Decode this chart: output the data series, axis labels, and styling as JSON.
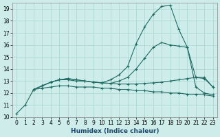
{
  "xlabel": "Humidex (Indice chaleur)",
  "ylabel": "",
  "xlim": [
    -0.5,
    23.5
  ],
  "ylim": [
    10,
    19.5
  ],
  "yticks": [
    10,
    11,
    12,
    13,
    14,
    15,
    16,
    17,
    18,
    19
  ],
  "xticks": [
    0,
    1,
    2,
    3,
    4,
    5,
    6,
    7,
    8,
    9,
    10,
    11,
    12,
    13,
    14,
    15,
    16,
    17,
    18,
    19,
    20,
    21,
    22,
    23
  ],
  "bg_color": "#ceecea",
  "grid_color": "#aed8d4",
  "line_color": "#1e6b63",
  "lines": [
    {
      "x": [
        0,
        1,
        2,
        3,
        4,
        5,
        6,
        7,
        8,
        9,
        10,
        11,
        12,
        13,
        14,
        15,
        16,
        17,
        18,
        19,
        20,
        21,
        22,
        23
      ],
      "y": [
        10.3,
        11.0,
        12.3,
        12.4,
        12.5,
        12.6,
        12.6,
        12.5,
        12.5,
        12.5,
        12.4,
        12.4,
        12.3,
        12.3,
        12.2,
        12.2,
        12.1,
        12.1,
        12.0,
        12.0,
        11.9,
        11.9,
        11.85,
        11.75
      ],
      "marker": "+"
    },
    {
      "x": [
        2,
        3,
        4,
        5,
        6,
        7,
        8,
        9,
        10,
        11,
        12,
        13,
        14,
        15,
        16,
        17,
        18,
        19,
        20,
        21,
        22,
        23
      ],
      "y": [
        12.3,
        12.6,
        12.9,
        13.1,
        13.1,
        13.0,
        13.0,
        12.9,
        12.85,
        12.8,
        12.75,
        12.75,
        12.75,
        12.8,
        12.85,
        12.9,
        13.0,
        13.1,
        13.2,
        13.3,
        13.3,
        12.5
      ],
      "marker": "+"
    },
    {
      "x": [
        2,
        3,
        4,
        5,
        6,
        7,
        8,
        9,
        10,
        11,
        12,
        13,
        14,
        15,
        16,
        17,
        18,
        19,
        20,
        21,
        22,
        23
      ],
      "y": [
        12.3,
        12.6,
        12.9,
        13.1,
        13.2,
        13.1,
        13.0,
        12.9,
        12.85,
        12.8,
        13.0,
        13.3,
        14.0,
        14.9,
        15.8,
        16.2,
        16.0,
        15.9,
        15.8,
        13.3,
        13.2,
        12.5
      ],
      "marker": "+"
    },
    {
      "x": [
        2,
        3,
        4,
        5,
        6,
        7,
        8,
        9,
        10,
        11,
        12,
        13,
        14,
        15,
        16,
        17,
        18,
        19,
        20,
        21,
        22,
        23
      ],
      "y": [
        12.3,
        12.6,
        12.9,
        13.1,
        13.2,
        13.1,
        13.0,
        12.9,
        12.85,
        13.1,
        13.5,
        14.2,
        16.1,
        17.5,
        18.55,
        19.2,
        19.3,
        17.3,
        15.8,
        12.5,
        12.0,
        11.85
      ],
      "marker": "+"
    }
  ]
}
